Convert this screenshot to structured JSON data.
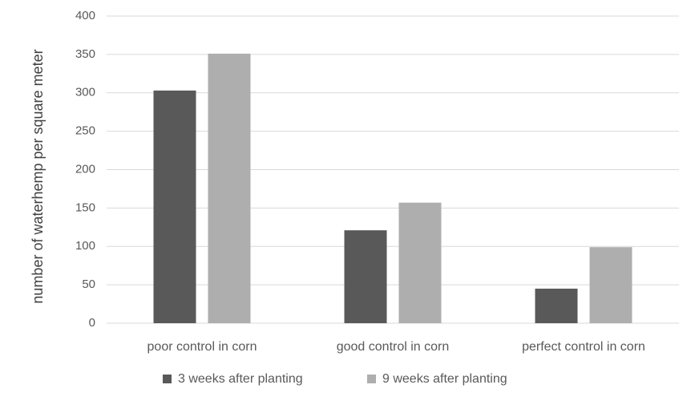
{
  "chart_data": {
    "type": "bar",
    "ylabel": "number of waterhemp per square meter",
    "categories": [
      "poor control in corn",
      "good control in corn",
      "perfect control in corn"
    ],
    "series": [
      {
        "name": "3 weeks after planting",
        "color": "#595959",
        "values": [
          303,
          121,
          45
        ]
      },
      {
        "name": "9 weeks after planting",
        "color": "#aeaeae",
        "values": [
          351,
          157,
          99
        ]
      }
    ],
    "ylim": [
      0,
      400
    ],
    "yticks": [
      0,
      50,
      100,
      150,
      200,
      250,
      300,
      350,
      400
    ],
    "grid": true,
    "legend": "bottom"
  }
}
